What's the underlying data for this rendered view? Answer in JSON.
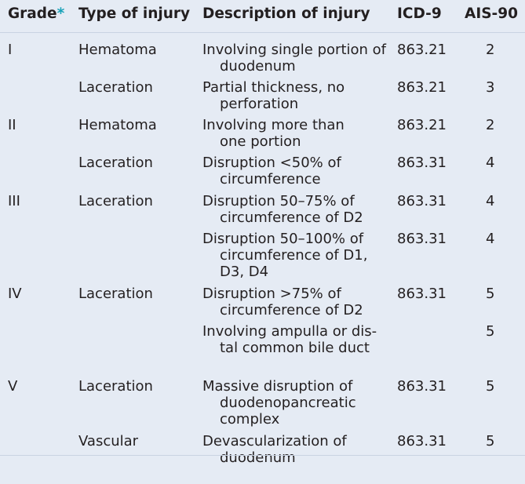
{
  "table": {
    "headers": {
      "grade": "Grade",
      "grade_marker": "*",
      "type": "Type of injury",
      "description": "Description of injury",
      "icd": "ICD-9",
      "ais": "AIS-90"
    },
    "rows": [
      {
        "grade": "I",
        "type": "Hematoma",
        "desc1": "Involving single portion of",
        "desc2": "duodenum",
        "desc3": "",
        "icd": "863.21",
        "ais": "2"
      },
      {
        "grade": "",
        "type": "Laceration",
        "desc1": "Partial thickness, no",
        "desc2": "perforation",
        "desc3": "",
        "icd": "863.21",
        "ais": "3"
      },
      {
        "grade": "II",
        "type": "Hematoma",
        "desc1": "Involving more than",
        "desc2": "one portion",
        "desc3": "",
        "icd": "863.21",
        "ais": "2"
      },
      {
        "grade": "",
        "type": "Laceration",
        "desc1": "Disruption <50% of",
        "desc2": "circumference",
        "desc3": "",
        "icd": "863.31",
        "ais": "4"
      },
      {
        "grade": "III",
        "type": "Laceration",
        "desc1": "Disruption 50–75% of",
        "desc2": "circumference of D2",
        "desc3": "",
        "icd": "863.31",
        "ais": "4"
      },
      {
        "grade": "",
        "type": "",
        "desc1": "Disruption 50–100% of",
        "desc2": "circumference of D1,",
        "desc3": "D3, D4",
        "icd": "863.31",
        "ais": "4"
      },
      {
        "grade": "IV",
        "type": "Laceration",
        "desc1": "Disruption >75% of",
        "desc2": "circumference of D2",
        "desc3": "",
        "icd": "863.31",
        "ais": "5"
      },
      {
        "grade": "",
        "type": "",
        "desc1": "Involving ampulla or dis-",
        "desc2": "tal common bile duct",
        "desc3": "",
        "icd": "",
        "ais": "5"
      },
      {
        "grade": "V",
        "type": "Laceration",
        "desc1": "Massive disruption of",
        "desc2": "duodenopancreatic",
        "desc3": "complex",
        "icd": "863.31",
        "ais": "5"
      },
      {
        "grade": "",
        "type": "Vascular",
        "desc1": "Devascularization of",
        "desc2": "duodenum",
        "desc3": "",
        "icd": "863.31",
        "ais": "5"
      }
    ]
  }
}
